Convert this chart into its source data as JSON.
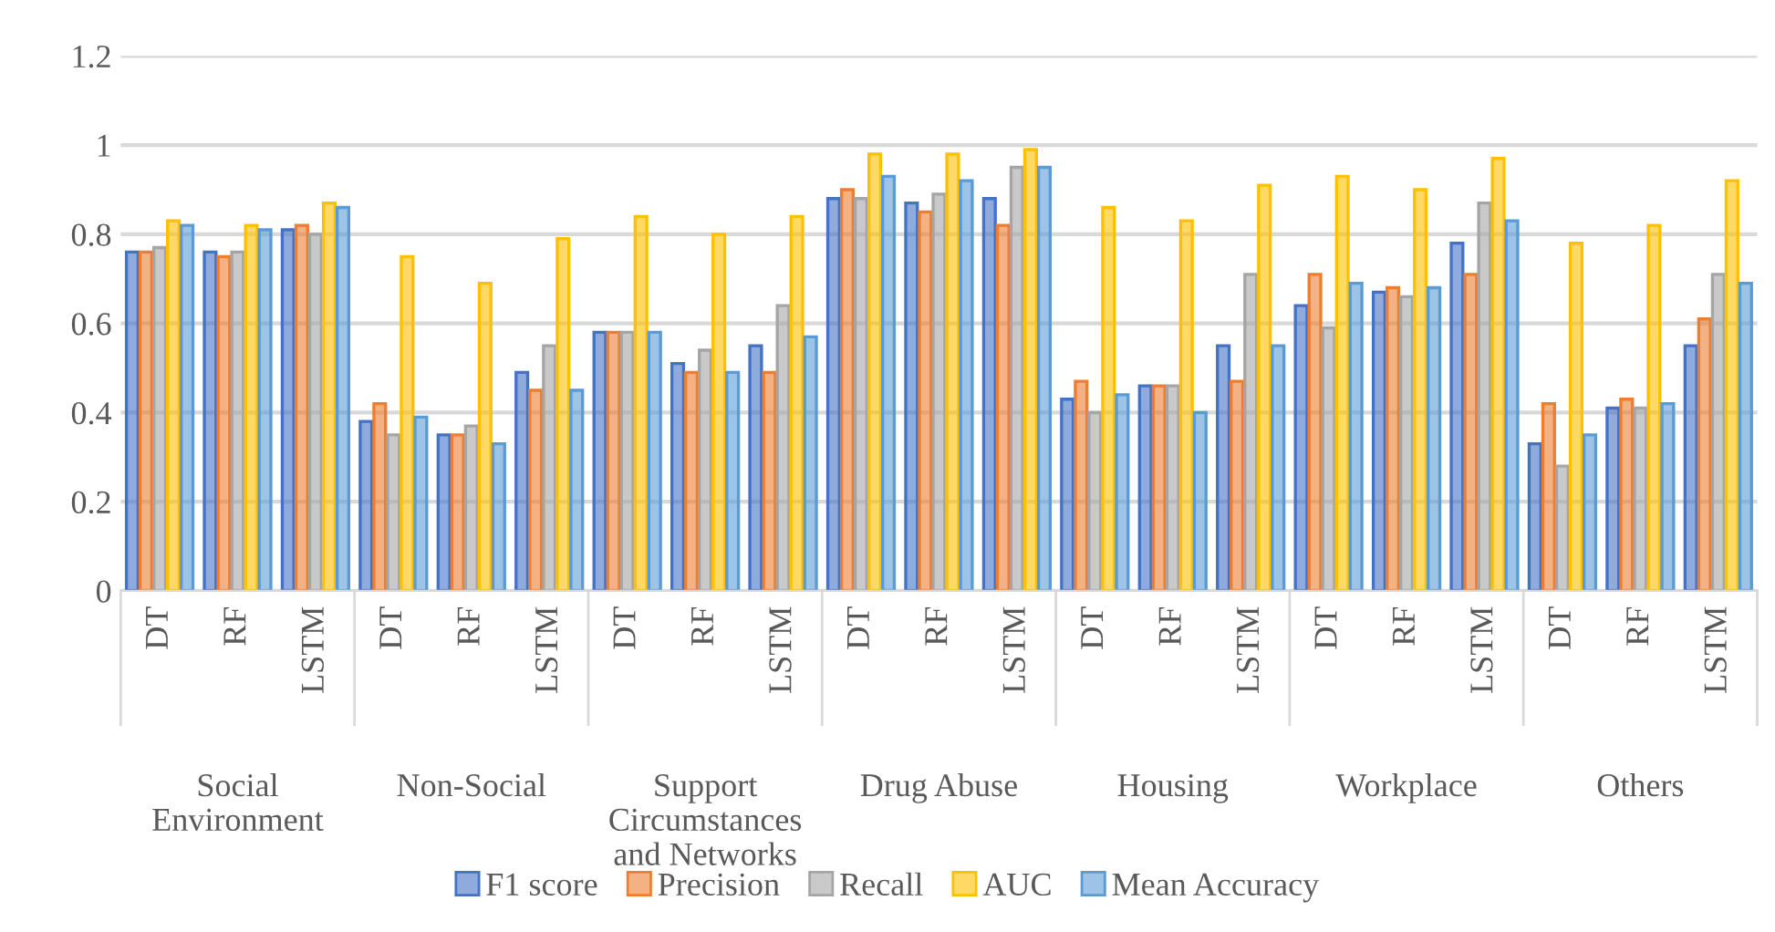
{
  "chart_data": {
    "type": "bar",
    "categories": [
      "DT",
      "RF",
      "LSTM",
      "DT",
      "RF",
      "LSTM",
      "DT",
      "RF",
      "LSTM",
      "DT",
      "RF",
      "LSTM",
      "DT",
      "RF",
      "LSTM",
      "DT",
      "RF",
      "LSTM",
      "DT",
      "RF",
      "LSTM"
    ],
    "annotations": [
      "Social\nEnvironment",
      "Non-Social",
      "Support\nCircumstances\nand Networks",
      "Drug Abuse",
      "Housing",
      "Workplace",
      "Others"
    ],
    "series": [
      {
        "name": "F1 score",
        "color": "#4472c4",
        "values": [
          0.76,
          0.76,
          0.81,
          0.38,
          0.35,
          0.49,
          0.58,
          0.51,
          0.55,
          0.88,
          0.87,
          0.88,
          0.43,
          0.46,
          0.55,
          0.64,
          0.67,
          0.78,
          0.33,
          0.41,
          0.55
        ]
      },
      {
        "name": "Precision",
        "color": "#ed7d31",
        "values": [
          0.76,
          0.75,
          0.82,
          0.42,
          0.35,
          0.45,
          0.58,
          0.49,
          0.49,
          0.9,
          0.85,
          0.82,
          0.47,
          0.46,
          0.47,
          0.71,
          0.68,
          0.71,
          0.42,
          0.43,
          0.61
        ]
      },
      {
        "name": "Recall",
        "color": "#a5a5a5",
        "values": [
          0.77,
          0.76,
          0.8,
          0.35,
          0.37,
          0.55,
          0.58,
          0.54,
          0.64,
          0.88,
          0.89,
          0.95,
          0.4,
          0.46,
          0.71,
          0.59,
          0.66,
          0.87,
          0.28,
          0.41,
          0.71
        ]
      },
      {
        "name": "AUC",
        "color": "#ffc000",
        "values": [
          0.83,
          0.82,
          0.87,
          0.75,
          0.69,
          0.79,
          0.84,
          0.8,
          0.84,
          0.98,
          0.98,
          0.99,
          0.86,
          0.83,
          0.91,
          0.93,
          0.9,
          0.97,
          0.78,
          0.82,
          0.92
        ]
      },
      {
        "name": "Mean Accuracy",
        "color": "#5b9bd5",
        "values": [
          0.82,
          0.81,
          0.86,
          0.39,
          0.33,
          0.45,
          0.58,
          0.49,
          0.57,
          0.93,
          0.92,
          0.95,
          0.44,
          0.4,
          0.55,
          0.69,
          0.68,
          0.83,
          0.35,
          0.42,
          0.69
        ]
      }
    ],
    "ylim": [
      0,
      1.2
    ],
    "yticks": [
      0,
      0.2,
      0.4,
      0.6,
      0.8,
      1,
      1.2
    ],
    "grid": "y",
    "legend": "bottom"
  }
}
